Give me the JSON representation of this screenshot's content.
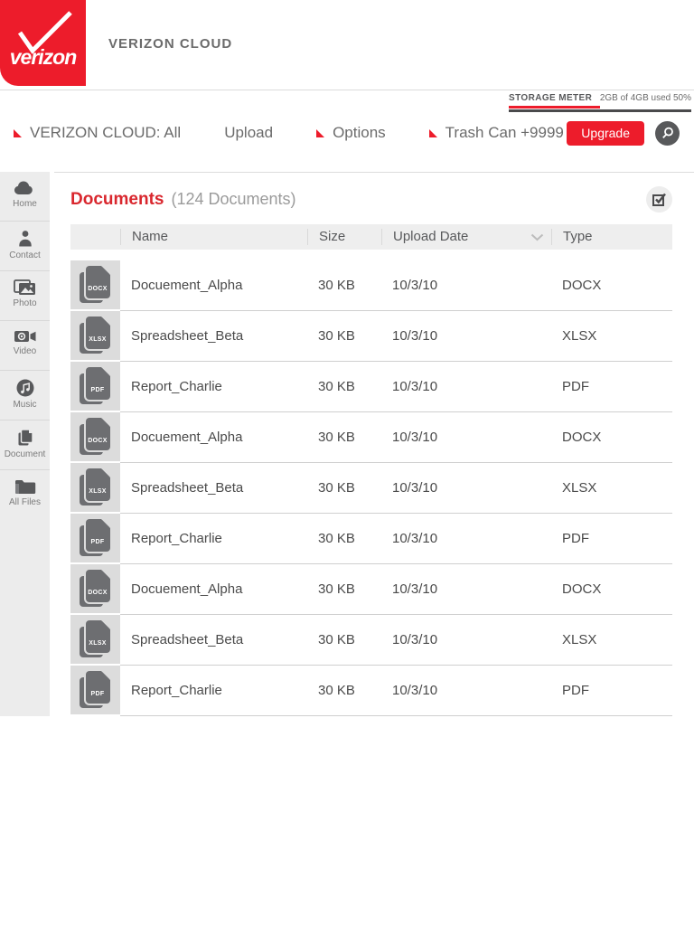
{
  "colors": {
    "brand_red": "#ed1c2b",
    "title_red": "#d9272e"
  },
  "header": {
    "logo_text": "verizon",
    "app_title": "VERIZON CLOUD"
  },
  "storage_meter": {
    "label": "STORAGE METER",
    "usage_text": "2GB of 4GB used 50%",
    "used_percent": 50
  },
  "nav": {
    "collection_label": "VERIZON CLOUD: All",
    "upload_label": "Upload",
    "options_label": "Options",
    "trash_label": "Trash Can +9999",
    "upgrade_label": "Upgrade"
  },
  "sidebar": {
    "items": [
      {
        "label": "Home",
        "icon": "cloud-icon"
      },
      {
        "label": "Contact",
        "icon": "person-icon"
      },
      {
        "label": "Photo",
        "icon": "photo-icon"
      },
      {
        "label": "Video",
        "icon": "video-camera-icon"
      },
      {
        "label": "Music",
        "icon": "music-note-icon"
      },
      {
        "label": "Document",
        "icon": "documents-icon"
      },
      {
        "label": "All Files",
        "icon": "folder-icon"
      }
    ]
  },
  "content": {
    "title": "Documents",
    "count_text": "(124 Documents)",
    "columns": {
      "name": "Name",
      "size": "Size",
      "date": "Upload Date",
      "type": "Type"
    },
    "rows": [
      {
        "badge": "DOCX",
        "name": "Docuement_Alpha",
        "size": "30 KB",
        "date": "10/3/10",
        "type": "DOCX"
      },
      {
        "badge": "XLSX",
        "name": "Spreadsheet_Beta",
        "size": "30 KB",
        "date": "10/3/10",
        "type": "XLSX"
      },
      {
        "badge": "PDF",
        "name": "Report_Charlie",
        "size": "30 KB",
        "date": "10/3/10",
        "type": "PDF"
      },
      {
        "badge": "DOCX",
        "name": "Docuement_Alpha",
        "size": "30 KB",
        "date": "10/3/10",
        "type": "DOCX"
      },
      {
        "badge": "XLSX",
        "name": "Spreadsheet_Beta",
        "size": "30 KB",
        "date": "10/3/10",
        "type": "XLSX"
      },
      {
        "badge": "PDF",
        "name": "Report_Charlie",
        "size": "30 KB",
        "date": "10/3/10",
        "type": "PDF"
      },
      {
        "badge": "DOCX",
        "name": "Docuement_Alpha",
        "size": "30 KB",
        "date": "10/3/10",
        "type": "DOCX"
      },
      {
        "badge": "XLSX",
        "name": "Spreadsheet_Beta",
        "size": "30 KB",
        "date": "10/3/10",
        "type": "XLSX"
      },
      {
        "badge": "PDF",
        "name": "Report_Charlie",
        "size": "30 KB",
        "date": "10/3/10",
        "type": "PDF"
      }
    ]
  }
}
